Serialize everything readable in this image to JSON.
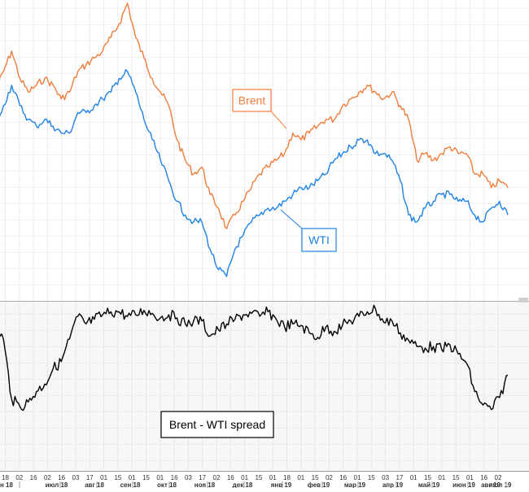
{
  "colors": {
    "brent": "#f07d3c",
    "wti": "#1e82e6",
    "spread": "#000000",
    "grid": "#e8e8e8",
    "panel_bg": "#f7f7f7",
    "label_text": "#333333"
  },
  "annotations": {
    "brent_label": "Brent",
    "wti_label": "WTI",
    "spread_label": "Brent - WTI spread"
  },
  "chart_data": [
    {
      "type": "line",
      "panel": "prices",
      "grid": true,
      "series": [
        {
          "name": "Brent",
          "color": "#f07d3c",
          "x": [
            "2018-06-18",
            "2018-06-25",
            "2018-07-02",
            "2018-07-09",
            "2018-07-16",
            "2018-07-23",
            "2018-07-30",
            "2018-08-06",
            "2018-08-13",
            "2018-08-20",
            "2018-08-27",
            "2018-09-03",
            "2018-09-10",
            "2018-09-17",
            "2018-09-24",
            "2018-10-01",
            "2018-10-08",
            "2018-10-15",
            "2018-10-22",
            "2018-10-29",
            "2018-11-05",
            "2018-11-12",
            "2018-11-19",
            "2018-11-26",
            "2018-12-03",
            "2018-12-10",
            "2018-12-17",
            "2018-12-24",
            "2018-12-31",
            "2019-01-07",
            "2019-01-14",
            "2019-01-21",
            "2019-01-28",
            "2019-02-04",
            "2019-02-11",
            "2019-02-18",
            "2019-02-25",
            "2019-03-04",
            "2019-03-11",
            "2019-03-18",
            "2019-03-25",
            "2019-04-01",
            "2019-04-08",
            "2019-04-15",
            "2019-04-22",
            "2019-04-29",
            "2019-05-06",
            "2019-05-13",
            "2019-05-20",
            "2019-05-27",
            "2019-06-03",
            "2019-06-10",
            "2019-06-17",
            "2019-06-24",
            "2019-07-01",
            "2019-07-08",
            "2019-07-15",
            "2019-07-22",
            "2019-07-29",
            "2019-08-05",
            "2019-08-12",
            "2019-08-19",
            "2019-08-26"
          ],
          "values": [
            72,
            75,
            78,
            74,
            72,
            73,
            74,
            73,
            71,
            72,
            75,
            76,
            77,
            78,
            80,
            82,
            85,
            80,
            77,
            74,
            72,
            70,
            65,
            62,
            60,
            61,
            57,
            55,
            52,
            54,
            56,
            58,
            60,
            61,
            62,
            63,
            66,
            65,
            66,
            67,
            68,
            68,
            70,
            71,
            72,
            73,
            72,
            71,
            72,
            70,
            68,
            62,
            63,
            62,
            63,
            64,
            63,
            63,
            60,
            60,
            58,
            59,
            58
          ]
        },
        {
          "name": "WTI",
          "color": "#1e82e6",
          "x": [
            "2018-06-18",
            "2018-06-25",
            "2018-07-02",
            "2018-07-09",
            "2018-07-16",
            "2018-07-23",
            "2018-07-30",
            "2018-08-06",
            "2018-08-13",
            "2018-08-20",
            "2018-08-27",
            "2018-09-03",
            "2018-09-10",
            "2018-09-17",
            "2018-09-24",
            "2018-10-01",
            "2018-10-08",
            "2018-10-15",
            "2018-10-22",
            "2018-10-29",
            "2018-11-05",
            "2018-11-12",
            "2018-11-19",
            "2018-11-26",
            "2018-12-03",
            "2018-12-10",
            "2018-12-17",
            "2018-12-24",
            "2018-12-31",
            "2019-01-07",
            "2019-01-14",
            "2019-01-21",
            "2019-01-28",
            "2019-02-04",
            "2019-02-11",
            "2019-02-18",
            "2019-02-25",
            "2019-03-04",
            "2019-03-11",
            "2019-03-18",
            "2019-03-25",
            "2019-04-01",
            "2019-04-08",
            "2019-04-15",
            "2019-04-22",
            "2019-04-29",
            "2019-05-06",
            "2019-05-13",
            "2019-05-20",
            "2019-05-27",
            "2019-06-03",
            "2019-06-10",
            "2019-06-17",
            "2019-06-24",
            "2019-07-01",
            "2019-07-08",
            "2019-07-15",
            "2019-07-22",
            "2019-07-29",
            "2019-08-05",
            "2019-08-12",
            "2019-08-19",
            "2019-08-26"
          ],
          "values": [
            66,
            70,
            73,
            70,
            68,
            67,
            68,
            67,
            66,
            66,
            69,
            69,
            70,
            71,
            72,
            74,
            75,
            72,
            68,
            65,
            62,
            59,
            56,
            54,
            53,
            53,
            49,
            46,
            45,
            49,
            51,
            53,
            54,
            55,
            55,
            56,
            57,
            58,
            58,
            59,
            60,
            62,
            63,
            64,
            65,
            65,
            63,
            63,
            62,
            59,
            54,
            53,
            55,
            56,
            57,
            57,
            56,
            56,
            54,
            53,
            55,
            56,
            54
          ]
        }
      ]
    },
    {
      "type": "line",
      "panel": "spread",
      "grid": true,
      "series": [
        {
          "name": "Brent - WTI spread",
          "color": "#000000",
          "x": [
            "2018-06-18",
            "2018-06-25",
            "2018-07-02",
            "2018-07-09",
            "2018-07-16",
            "2018-07-23",
            "2018-07-30",
            "2018-08-06",
            "2018-08-13",
            "2018-08-20",
            "2018-08-27",
            "2018-09-03",
            "2018-09-10",
            "2018-09-17",
            "2018-09-24",
            "2018-10-01",
            "2018-10-08",
            "2018-10-15",
            "2018-10-22",
            "2018-10-29",
            "2018-11-05",
            "2018-11-12",
            "2018-11-19",
            "2018-11-26",
            "2018-12-03",
            "2018-12-10",
            "2018-12-17",
            "2018-12-24",
            "2018-12-31",
            "2019-01-07",
            "2019-01-14",
            "2019-01-21",
            "2019-01-28",
            "2019-02-04",
            "2019-02-11",
            "2019-02-18",
            "2019-02-25",
            "2019-03-04",
            "2019-03-11",
            "2019-03-18",
            "2019-03-25",
            "2019-04-01",
            "2019-04-08",
            "2019-04-15",
            "2019-04-22",
            "2019-04-29",
            "2019-05-06",
            "2019-05-13",
            "2019-05-20",
            "2019-05-27",
            "2019-06-03",
            "2019-06-10",
            "2019-06-17",
            "2019-06-24",
            "2019-07-01",
            "2019-07-08",
            "2019-07-15",
            "2019-07-22",
            "2019-07-29",
            "2019-08-05",
            "2019-08-12",
            "2019-08-19",
            "2019-08-26"
          ],
          "values": [
            9.0,
            8.0,
            4.0,
            3.5,
            3.8,
            4.5,
            5.0,
            6.0,
            6.5,
            8.0,
            9.5,
            9.0,
            9.3,
            9.6,
            9.8,
            9.8,
            9.5,
            9.6,
            9.9,
            9.7,
            9.4,
            9.6,
            9.4,
            9.0,
            9.2,
            9.2,
            8.2,
            8.6,
            9.0,
            9.3,
            9.6,
            9.7,
            9.5,
            9.8,
            9.3,
            8.8,
            9.0,
            8.9,
            8.4,
            8.1,
            8.8,
            8.5,
            8.9,
            9.2,
            9.5,
            9.8,
            10.0,
            9.1,
            9.2,
            8.4,
            7.9,
            7.5,
            7.4,
            7.5,
            7.3,
            7.6,
            7.0,
            6.4,
            4.5,
            3.6,
            3.3,
            4.1,
            5.6
          ]
        }
      ]
    }
  ],
  "x_axis": {
    "day_ticks": [
      "18",
      "02",
      "16",
      "02",
      "16",
      "03",
      "17",
      "01",
      "15",
      "01",
      "15",
      "01",
      "16",
      "03",
      "17",
      "02",
      "16",
      "01",
      "15",
      "01",
      "18",
      "01",
      "15",
      "02",
      "16",
      "01",
      "15",
      "03",
      "17",
      "01",
      "15",
      "01",
      "15",
      "01",
      "16",
      "02"
    ],
    "month_labels": [
      "н 18",
      "июл 18",
      "авг 18",
      "сен 18",
      "окт 18",
      "ноя 18",
      "дек 18",
      "янв 19",
      "фев 19",
      "мар 19",
      "апр 19",
      "май 19",
      "июн 19",
      "июл 19",
      "авг 19"
    ]
  }
}
